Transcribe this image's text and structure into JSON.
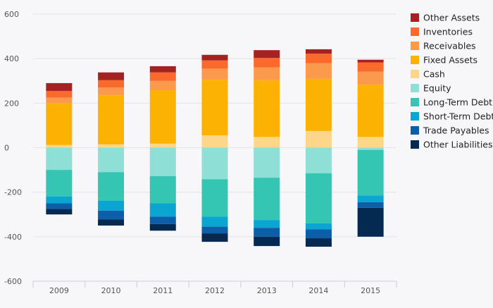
{
  "chart_data": {
    "type": "bar",
    "stacked": true,
    "categories": [
      "2009",
      "2010",
      "2011",
      "2012",
      "2013",
      "2014",
      "2015"
    ],
    "ylim": [
      -600,
      600
    ],
    "yticks": [
      600,
      400,
      200,
      0,
      -200,
      -400,
      -600
    ],
    "ytick_labels": [
      "600",
      "400",
      "200",
      "0",
      "-200",
      "-400",
      "-600"
    ],
    "grid": true,
    "legend_position": "right",
    "series": [
      {
        "name": "Cash",
        "color": "#fdd68a",
        "values": [
          12,
          15,
          18,
          55,
          48,
          75,
          48
        ]
      },
      {
        "name": "Fixed Assets",
        "color": "#fbb203",
        "values": [
          188,
          220,
          240,
          250,
          255,
          235,
          235
        ]
      },
      {
        "name": "Receivables",
        "color": "#fb9a4d",
        "values": [
          25,
          35,
          42,
          50,
          58,
          70,
          58
        ]
      },
      {
        "name": "Inventories",
        "color": "#fa6a2c",
        "values": [
          30,
          33,
          38,
          37,
          42,
          42,
          42
        ]
      },
      {
        "name": "Other Assets",
        "color": "#a52222",
        "values": [
          35,
          35,
          28,
          25,
          35,
          20,
          12
        ]
      },
      {
        "name": "Equity",
        "color": "#8edfd6",
        "values": [
          -100,
          -110,
          -128,
          -142,
          -135,
          -115,
          -10
        ]
      },
      {
        "name": "Long-Term Debt",
        "color": "#34c5b3",
        "values": [
          -120,
          -128,
          -122,
          -168,
          -190,
          -225,
          -205
        ]
      },
      {
        "name": "Short-Term Debt",
        "color": "#0aa6d1",
        "values": [
          -30,
          -45,
          -60,
          -45,
          -35,
          -27,
          -30
        ]
      },
      {
        "name": "Trade Payables",
        "color": "#0c5ea8",
        "values": [
          -25,
          -40,
          -33,
          -30,
          -40,
          -40,
          -25
        ]
      },
      {
        "name": "Other Liabilities",
        "color": "#052a52",
        "values": [
          -25,
          -27,
          -30,
          -38,
          -42,
          -38,
          -130
        ]
      }
    ],
    "legend_order": [
      "Other Assets",
      "Inventories",
      "Receivables",
      "Fixed Assets",
      "Cash",
      "Equity",
      "Long-Term Debt",
      "Short-Term Debt",
      "Trade Payables",
      "Other Liabilities"
    ]
  }
}
